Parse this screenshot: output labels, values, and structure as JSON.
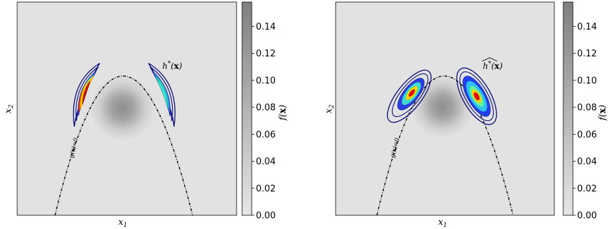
{
  "chart_data": [
    {
      "type": "heatmap",
      "xlabel": "x₁",
      "ylabel": "x₂",
      "background": "f(x) — isotropic Gaussian centred in the domain",
      "constraint_label": "g(x)=0",
      "density_label": "h*(x)",
      "density_regions": [
        {
          "side": "left",
          "peak": "red",
          "shape": "thin crescent hugging the boundary"
        },
        {
          "side": "right",
          "peak": "teal",
          "shape": "thin crescent hugging the boundary"
        }
      ],
      "colorbar": {
        "label": "f(x)",
        "ticks": [
          "0.00",
          "0.02",
          "0.04",
          "0.06",
          "0.08",
          "0.10",
          "0.12",
          "0.14"
        ],
        "range": [
          0,
          0.158
        ]
      }
    },
    {
      "type": "heatmap",
      "xlabel": "x₁",
      "ylabel": "x₂",
      "background": "f(x) — isotropic Gaussian centred in the domain",
      "constraint_label": "g(x)=0",
      "density_label": "ĥ*(x)",
      "density_regions": [
        {
          "side": "left",
          "peak": "red",
          "shape": "tilted ellipse"
        },
        {
          "side": "right",
          "peak": "red",
          "shape": "tilted ellipse"
        }
      ],
      "colorbar": {
        "label": "f(x)",
        "ticks": [
          "0.00",
          "0.02",
          "0.04",
          "0.06",
          "0.08",
          "0.10",
          "0.12",
          "0.14"
        ],
        "range": [
          0,
          0.158
        ]
      }
    }
  ],
  "colors": {
    "plot_background": "#e2e2e2",
    "gaussian_center": "#8f8f8f",
    "colorbar_top": "#808080",
    "colorbar_bottom": "#e6e6e6",
    "contour_outer": "#0a0a78",
    "contour_peak": "#8b0000"
  }
}
